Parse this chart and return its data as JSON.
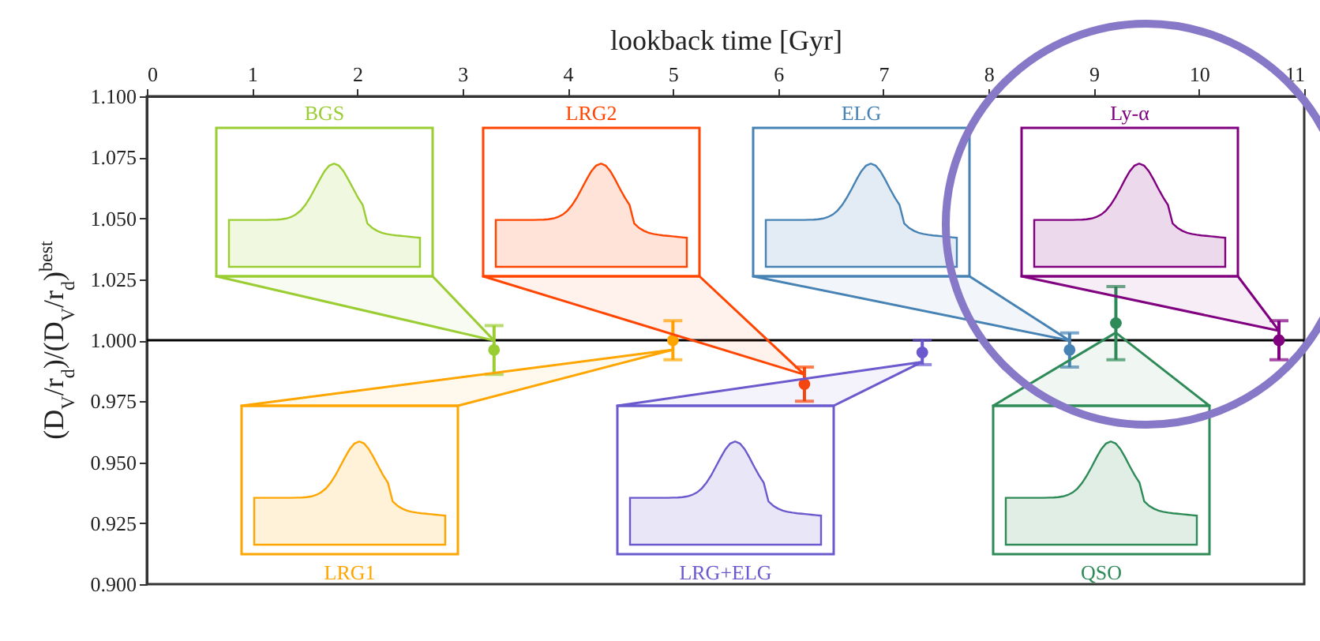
{
  "chart_data": {
    "type": "scatter",
    "xlabel": "lookback time [Gyr]",
    "ylabel": "(D$_{V}$/r$_{d}$)/(D$_{V}$/r$_{d}$)$^{best}$",
    "xlim": [
      0,
      11
    ],
    "xticks": [
      0,
      1,
      2,
      3,
      4,
      5,
      6,
      7,
      8,
      9,
      10,
      11
    ],
    "ylim": [
      0.9,
      1.1
    ],
    "yticks": [
      {
        "value": 0.9,
        "label": "0.900"
      },
      {
        "value": 0.925,
        "label": "0.925"
      },
      {
        "value": 0.95,
        "label": "0.950"
      },
      {
        "value": 0.975,
        "label": "0.975"
      },
      {
        "value": 1.0,
        "label": "1.000"
      },
      {
        "value": 1.025,
        "label": "1.025"
      },
      {
        "value": 1.05,
        "label": "1.050"
      },
      {
        "value": 1.075,
        "label": "1.075"
      },
      {
        "value": 1.1,
        "label": "1.100"
      }
    ],
    "marker": "circle",
    "grid": false,
    "ref_lines": [
      {
        "axis": "y",
        "value": 1.0,
        "color": "#000000"
      }
    ],
    "series": [
      {
        "name": "BGS",
        "color": "#9acd32",
        "x": [
          3.3
        ],
        "values": [
          0.996
        ],
        "errors": [
          0.01
        ]
      },
      {
        "name": "LRG1",
        "color": "#ffa500",
        "x": [
          5.0
        ],
        "values": [
          1.0
        ],
        "errors": [
          0.008
        ]
      },
      {
        "name": "LRG2",
        "color": "#ff4500",
        "x": [
          6.25
        ],
        "values": [
          0.982
        ],
        "errors": [
          0.007
        ]
      },
      {
        "name": "LRG+ELG",
        "color": "#6a5acd",
        "x": [
          7.37
        ],
        "values": [
          0.995
        ],
        "errors": [
          0.005
        ]
      },
      {
        "name": "ELG",
        "color": "#4682b4",
        "x": [
          8.77
        ],
        "values": [
          0.996
        ],
        "errors": [
          0.007
        ]
      },
      {
        "name": "QSO",
        "color": "#2e8b57",
        "x": [
          9.21
        ],
        "values": [
          1.007
        ],
        "errors": [
          0.015
        ]
      },
      {
        "name": "Ly-α",
        "color": "#800080",
        "x": [
          10.76
        ],
        "values": [
          1.0
        ],
        "errors": [
          0.008
        ]
      }
    ]
  }
}
